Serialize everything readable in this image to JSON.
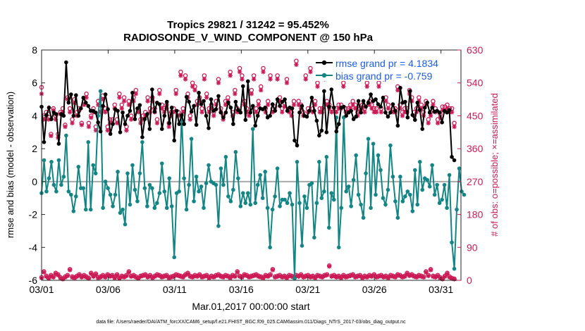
{
  "chart_data": {
    "type": "line",
    "title_line1": "Tropics 29821 / 31242 = 95.452%",
    "title_line2": "RADIOSONDE_V_WIND_COMPONENT @ 150 hPa",
    "xlabel": "Mar.01,2017 00:00:00 start",
    "ylabel_left": "rmse and bias (model - observation)",
    "ylabel_right": "# of obs: o=possible; ×=assimilated",
    "footnote": "data file: /Users/raeder/DAI/ATM_forcXX/CAM6_setup/f.e21.FHIST_BGC.f09_025.CAM6assim.011/Diags_NTrS_2017-03/obs_diag_output.nc",
    "xlim": [
      0,
      31.5
    ],
    "xticks": [
      0,
      5,
      10,
      15,
      20,
      25,
      30
    ],
    "xtick_labels": [
      "03/01",
      "03/06",
      "03/11",
      "03/16",
      "03/21",
      "03/26",
      "03/31"
    ],
    "ylim_left": [
      -6,
      8
    ],
    "yticks_left": [
      -6,
      -4,
      -2,
      0,
      2,
      4,
      6,
      8
    ],
    "ylim_right": [
      0,
      630
    ],
    "yticks_right": [
      0,
      90,
      180,
      270,
      360,
      450,
      540,
      630
    ],
    "legend": [
      {
        "label": "rmse grand pr = 4.1834",
        "color": "#000000",
        "marker": "circle"
      },
      {
        "label": "bias grand pr = -0.759",
        "color": "#0d8080",
        "marker": "circle"
      }
    ],
    "zero_line_color": "#aaaaaa",
    "colors": {
      "rmse": "#000000",
      "bias": "#138585",
      "obs": "#cc1a55",
      "label_blue": "#1a5ce6"
    },
    "series": [
      {
        "name": "rmse",
        "values": [
          4.55,
          2.4,
          4.05,
          4.5,
          3.8,
          4.2,
          4.1,
          2.3,
          4.1,
          4.0,
          7.25,
          4.8,
          5.3,
          4.0,
          5.25,
          4.0,
          4.45,
          5.1,
          4.8,
          4.6,
          4.3,
          4.3,
          4.2,
          3.6,
          3.05,
          4.6,
          5.3,
          4.4,
          2.9,
          3.5,
          4.4,
          4.3,
          3.0,
          4.2,
          3.5,
          4.0,
          4.3,
          5.4,
          3.8,
          4.45,
          4.65,
          2.7,
          3.8,
          4.1,
          3.2,
          5.6,
          4.25,
          4.8,
          4.7,
          3.2,
          4.0,
          4.85,
          3.55,
          4.5,
          2.5,
          4.3,
          3.5,
          4.05,
          3.5,
          5.15,
          4.85,
          4.25,
          4.6,
          3.45,
          5.4,
          4.7,
          4.9,
          4.0,
          3.25,
          5.0,
          4.3,
          4.4,
          5.2,
          4.2,
          3.9,
          4.2,
          4.8,
          4.5,
          3.5,
          4.85,
          4.35,
          4.2,
          5.8,
          3.75,
          6.1,
          4.2,
          4.6,
          3.4,
          4.0,
          4.45,
          4.4,
          4.5,
          3.9,
          4.0,
          4.7,
          4.3,
          5.0,
          4.6,
          4.85,
          5.0,
          4.3,
          4.5,
          4.45,
          2.5,
          2.2,
          4.2,
          4.6,
          4.0,
          3.95,
          4.3,
          5.1,
          4.3,
          3.7,
          2.8,
          3.1,
          5.5,
          3.0,
          4.55,
          5.6,
          4.5,
          3.05,
          3.5,
          4.5,
          4.55,
          4.0,
          4.2,
          4.3,
          3.8,
          3.95,
          4.9,
          4.2,
          4.9,
          4.55,
          4.8,
          5.3,
          4.9,
          5.0,
          4.7,
          4.55,
          5.1,
          4.2,
          3.95,
          4.2,
          4.7,
          4.3,
          3.4,
          5.7,
          4.8,
          4.85,
          3.9,
          5.5,
          4.05,
          3.75,
          4.8,
          4.35,
          3.2,
          4.5,
          4.8,
          4.2,
          4.5,
          4.25,
          4.3,
          4.2,
          3.6,
          4.3,
          4.2,
          4.35,
          1.5,
          1.3
        ]
      },
      {
        "name": "bias",
        "values": [
          -0.7,
          1.3,
          -0.6,
          0.2,
          1.2,
          -0.2,
          -0.6,
          1.3,
          -0.2,
          0.3,
          2.8,
          -0.6,
          -0.8,
          -1.8,
          -0.9,
          0.9,
          -0.4,
          -0.4,
          -1.7,
          2.4,
          -1.7,
          1.0,
          0.5,
          4.0,
          5.5,
          -1.6,
          0.0,
          -0.4,
          -0.8,
          -1.5,
          -0.8,
          0.6,
          -1.9,
          -1.7,
          -2.6,
          0.5,
          -1.4,
          1.0,
          -0.5,
          -1.2,
          0.5,
          2.4,
          -0.4,
          -1.5,
          -0.2,
          -0.4,
          -1.6,
          -1.3,
          -0.7,
          1.1,
          -0.6,
          -1.6,
          0.2,
          -1.5,
          -4.6,
          -0.7,
          -0.6,
          4.0,
          0.2,
          -1.7,
          -0.2,
          2.6,
          -1.2,
          0.3,
          -0.6,
          -0.3,
          -1.6,
          -0.1,
          1.0,
          0.0,
          -0.1,
          -0.2,
          -2.7,
          0.8,
          -0.2,
          1.5,
          -0.9,
          -1.2,
          -0.5,
          1.8,
          0.2,
          -1.5,
          -0.7,
          -1.3,
          -0.7,
          -1.4,
          3.2,
          -1.3,
          -0.2,
          0.4,
          -1.0,
          0.6,
          -1.6,
          -4.0,
          -1.7,
          -0.9,
          0.8,
          -1.5,
          -1.1,
          -1.1,
          -1.3,
          -0.7,
          -1.4,
          -5.9,
          1.2,
          -1.3,
          -3.9,
          -0.9,
          -1.6,
          -0.2,
          -0.1,
          -3.4,
          -1.3,
          1.2,
          -1.0,
          -0.6,
          1.5,
          -2.8,
          -0.7,
          -1.1,
          3.9,
          -4.0,
          -1.6,
          3.9,
          -0.6,
          -0.3,
          -1.5,
          0.1,
          1.6,
          -0.8,
          -1.4,
          -2.2,
          0.5,
          2.6,
          -1.6,
          2.3,
          -0.8,
          1.6,
          0.7,
          -1.0,
          -1.4,
          -0.5,
          2.2,
          0.3,
          -1.2,
          -2.2,
          0.3,
          -1.2,
          -0.9,
          -0.6,
          -0.8,
          -1.8,
          0.7,
          -1.4,
          1.2,
          -0.5,
          0.2,
          0.1,
          -0.3,
          1.0,
          -0.8,
          -0.2,
          -1.3,
          -1.1,
          -0.2,
          -1.6,
          0.4,
          -3.7,
          -5.3,
          -1.7,
          0.8,
          -0.6,
          -0.8
        ]
      },
      {
        "name": "obs possible",
        "values": [
          528,
          450,
          460,
          455,
          400,
          470,
          450,
          400,
          460,
          470,
          425,
          500,
          470,
          440,
          495,
          460,
          470,
          430,
          490,
          510,
          430,
          450,
          470,
          420,
          490,
          470,
          505,
          470,
          420,
          440,
          440,
          480,
          440,
          510,
          480,
          500,
          420,
          490,
          450,
          500,
          520,
          470,
          440,
          450,
          460,
          500,
          470,
          500,
          470,
          440,
          520,
          480,
          470,
          480,
          430,
          460,
          470,
          520,
          460,
          570,
          470,
          560,
          510,
          450,
          540,
          530,
          490,
          500,
          470,
          560,
          510,
          470,
          480,
          460,
          490,
          550,
          470,
          450,
          490,
          500,
          570,
          460,
          520,
          470,
          580,
          560,
          490,
          470,
          460,
          520,
          560,
          470,
          490,
          530,
          580,
          470,
          490,
          560,
          470,
          475,
          560,
          500,
          470,
          485,
          550,
          470,
          460,
          490,
          600,
          490,
          480,
          460,
          560,
          470,
          580,
          470,
          490,
          540,
          470,
          470,
          560,
          490,
          480,
          470,
          570,
          470,
          480,
          480,
          540,
          470,
          470,
          480,
          490,
          480,
          460,
          470,
          480,
          470,
          540,
          490,
          480,
          470,
          470,
          540,
          470,
          560,
          500,
          480,
          570,
          470,
          470,
          530,
          480,
          460,
          470,
          470,
          520,
          500,
          460,
          470,
          500,
          480,
          460,
          490,
          440,
          460,
          490,
          470,
          440,
          455,
          475,
          475,
          480,
          470,
          470,
          430
        ]
      },
      {
        "name": "obs assimilated",
        "values": [
          510,
          440,
          450,
          440,
          395,
          465,
          440,
          390,
          455,
          460,
          420,
          495,
          460,
          430,
          485,
          450,
          465,
          425,
          480,
          500,
          420,
          445,
          460,
          410,
          480,
          460,
          495,
          460,
          410,
          430,
          430,
          470,
          430,
          500,
          470,
          490,
          410,
          480,
          440,
          490,
          510,
          460,
          430,
          440,
          450,
          490,
          460,
          490,
          460,
          430,
          510,
          470,
          460,
          470,
          420,
          450,
          460,
          510,
          450,
          560,
          460,
          550,
          500,
          440,
          530,
          520,
          480,
          490,
          460,
          550,
          500,
          460,
          470,
          450,
          480,
          540,
          460,
          440,
          480,
          490,
          560,
          450,
          510,
          460,
          570,
          550,
          480,
          460,
          450,
          510,
          550,
          460,
          480,
          520,
          570,
          460,
          480,
          550,
          460,
          465,
          550,
          490,
          460,
          475,
          540,
          460,
          450,
          480,
          590,
          480,
          470,
          450,
          550,
          460,
          570,
          460,
          480,
          530,
          460,
          460,
          550,
          480,
          470,
          460,
          560,
          460,
          470,
          470,
          530,
          460,
          460,
          470,
          480,
          470,
          450,
          460,
          470,
          460,
          530,
          480,
          470,
          460,
          460,
          530,
          460,
          550,
          490,
          470,
          560,
          460,
          460,
          520,
          470,
          450,
          460,
          460,
          510,
          490,
          450,
          460,
          490,
          470,
          450,
          480,
          430,
          450,
          480,
          460,
          430,
          445,
          465,
          465,
          470,
          460,
          460,
          420
        ]
      },
      {
        "name": "obs possible (bottom)",
        "values": [
          8,
          24,
          12,
          6,
          14,
          10,
          20,
          16,
          8,
          4,
          10,
          14,
          30,
          10,
          8,
          12,
          16,
          10,
          14,
          10,
          6,
          20,
          12,
          18,
          8,
          10,
          14,
          10,
          16,
          12,
          14,
          8,
          16,
          6,
          12,
          10,
          14,
          24,
          12,
          14,
          10,
          6,
          12,
          14,
          16,
          10,
          14,
          8,
          12,
          16,
          14,
          10,
          12,
          14,
          8,
          10,
          12,
          16,
          14,
          12,
          10,
          16,
          20,
          12,
          10,
          14,
          12,
          16,
          10,
          12,
          14,
          8,
          12,
          10,
          14,
          16,
          12,
          10,
          14,
          12,
          8,
          14,
          12,
          24,
          12,
          10,
          16,
          14,
          10,
          12,
          14,
          16,
          12,
          10,
          8,
          14,
          12,
          16,
          30,
          10,
          12,
          14,
          10,
          12,
          8,
          14,
          12,
          10,
          14,
          12,
          16,
          10,
          12,
          14,
          10,
          12,
          8,
          14,
          12,
          10,
          14,
          16,
          40,
          12,
          14,
          10,
          12,
          8,
          14,
          10,
          12,
          14,
          16,
          10,
          12,
          14,
          8,
          12,
          10,
          14,
          12,
          16,
          10,
          12,
          14,
          10,
          12,
          8,
          14,
          12,
          10,
          16,
          14,
          10,
          12,
          20,
          14,
          16,
          12,
          10,
          14,
          12,
          10,
          24,
          14,
          30,
          12,
          10,
          14,
          8,
          4,
          12,
          20,
          10,
          6,
          4
        ]
      },
      {
        "name": "obs assimilated (bottom)",
        "values": [
          6,
          22,
          10,
          5,
          12,
          8,
          18,
          14,
          6,
          3,
          8,
          12,
          28,
          8,
          6,
          10,
          14,
          8,
          12,
          8,
          5,
          18,
          10,
          16,
          6,
          8,
          12,
          8,
          14,
          10,
          12,
          6,
          14,
          5,
          10,
          8,
          12,
          22,
          10,
          12,
          8,
          5,
          10,
          12,
          14,
          8,
          12,
          6,
          10,
          14,
          12,
          8,
          10,
          12,
          6,
          8,
          10,
          14,
          12,
          10,
          8,
          14,
          18,
          10,
          8,
          12,
          10,
          14,
          8,
          10,
          12,
          6,
          10,
          8,
          12,
          14,
          10,
          8,
          12,
          10,
          6,
          12,
          10,
          22,
          10,
          8,
          14,
          12,
          8,
          10,
          12,
          14,
          10,
          8,
          6,
          12,
          10,
          14,
          28,
          8,
          10,
          12,
          8,
          10,
          6,
          12,
          10,
          8,
          12,
          10,
          14,
          8,
          10,
          12,
          8,
          10,
          6,
          12,
          10,
          8,
          12,
          14,
          38,
          10,
          12,
          8,
          10,
          6,
          12,
          8,
          10,
          12,
          14,
          8,
          10,
          12,
          6,
          10,
          8,
          12,
          10,
          14,
          8,
          10,
          12,
          8,
          10,
          6,
          12,
          10,
          8,
          14,
          12,
          8,
          10,
          18,
          12,
          14,
          10,
          8,
          12,
          10,
          8,
          22,
          12,
          28,
          10,
          8,
          12,
          6,
          3,
          10,
          18,
          8,
          5,
          3
        ]
      }
    ]
  }
}
